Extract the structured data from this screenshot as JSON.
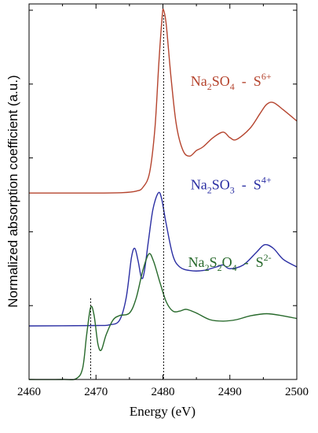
{
  "chart_data": {
    "type": "line",
    "title": "",
    "xlabel": "Energy  (eV)",
    "ylabel": "Normalized absorption coefficient (a.u.)",
    "xlim": [
      2460,
      2500
    ],
    "ylim": [
      0,
      10
    ],
    "x_ticks": [
      "2460",
      "2470",
      "2480",
      "2490",
      "2500"
    ],
    "grid": false,
    "legend": "none",
    "reference_lines_x": [
      2469.2,
      2480.1
    ],
    "series": [
      {
        "name": "Na2SO4 - S6+",
        "color": "#b5442e",
        "formula": [
          "Na",
          "2",
          "SO",
          "4",
          "  -  S",
          "6+"
        ],
        "annotation_anchor": {
          "x": 2496.2,
          "y": 7.95
        },
        "points": [
          [
            2460,
            5.05
          ],
          [
            2470,
            5.05
          ],
          [
            2474,
            5.06
          ],
          [
            2476,
            5.1
          ],
          [
            2477,
            5.2
          ],
          [
            2478,
            5.6
          ],
          [
            2478.8,
            6.8
          ],
          [
            2479.4,
            8.6
          ],
          [
            2479.9,
            9.85
          ],
          [
            2480.1,
            10.0
          ],
          [
            2480.5,
            9.6
          ],
          [
            2481.2,
            8.2
          ],
          [
            2482,
            6.9
          ],
          [
            2483,
            6.2
          ],
          [
            2484,
            6.05
          ],
          [
            2485,
            6.2
          ],
          [
            2486,
            6.3
          ],
          [
            2487.5,
            6.55
          ],
          [
            2489,
            6.7
          ],
          [
            2490,
            6.55
          ],
          [
            2491,
            6.5
          ],
          [
            2493,
            6.8
          ],
          [
            2494.5,
            7.2
          ],
          [
            2495.5,
            7.45
          ],
          [
            2496.5,
            7.5
          ],
          [
            2498,
            7.3
          ],
          [
            2500,
            7.0
          ]
        ]
      },
      {
        "name": "Na2SO3 - S4+",
        "color": "#2b2fa3",
        "formula": [
          "Na",
          "2",
          "SO",
          "3",
          "  -  S",
          "4+"
        ],
        "annotation_anchor": {
          "x": 2496.2,
          "y": 5.15
        },
        "points": [
          [
            2460,
            1.45
          ],
          [
            2470,
            1.46
          ],
          [
            2472,
            1.48
          ],
          [
            2473.5,
            1.6
          ],
          [
            2474.5,
            2.2
          ],
          [
            2475.3,
            3.3
          ],
          [
            2475.8,
            3.55
          ],
          [
            2476.3,
            3.2
          ],
          [
            2476.8,
            2.75
          ],
          [
            2477.2,
            2.9
          ],
          [
            2477.8,
            3.7
          ],
          [
            2478.5,
            4.6
          ],
          [
            2479.3,
            5.05
          ],
          [
            2479.8,
            4.9
          ],
          [
            2480.5,
            4.2
          ],
          [
            2481.5,
            3.35
          ],
          [
            2482.5,
            3.05
          ],
          [
            2484,
            2.95
          ],
          [
            2486,
            2.95
          ],
          [
            2488,
            3.05
          ],
          [
            2489,
            3.1
          ],
          [
            2490,
            3.0
          ],
          [
            2492,
            3.1
          ],
          [
            2494,
            3.45
          ],
          [
            2495.2,
            3.65
          ],
          [
            2496.5,
            3.55
          ],
          [
            2498,
            3.25
          ],
          [
            2500,
            3.05
          ]
        ]
      },
      {
        "name": "Na2S2O4 - S2-",
        "color": "#27692b",
        "formula": [
          "Na",
          "2",
          "S",
          "2",
          "O",
          "4",
          "  -  S",
          "2-"
        ],
        "annotation_anchor": {
          "x": 2496.2,
          "y": 3.05
        },
        "points": [
          [
            2460,
            0.0
          ],
          [
            2465,
            0.0
          ],
          [
            2467,
            0.02
          ],
          [
            2468,
            0.3
          ],
          [
            2468.6,
            1.2
          ],
          [
            2469.2,
            1.95
          ],
          [
            2469.7,
            1.75
          ],
          [
            2470.3,
            0.95
          ],
          [
            2470.8,
            0.8
          ],
          [
            2471.5,
            1.2
          ],
          [
            2472.5,
            1.6
          ],
          [
            2473.5,
            1.73
          ],
          [
            2475,
            1.8
          ],
          [
            2476,
            2.2
          ],
          [
            2477,
            2.95
          ],
          [
            2477.9,
            3.4
          ],
          [
            2478.6,
            3.2
          ],
          [
            2479.6,
            2.6
          ],
          [
            2480.5,
            2.1
          ],
          [
            2481.5,
            1.85
          ],
          [
            2482.5,
            1.85
          ],
          [
            2483.5,
            1.9
          ],
          [
            2485,
            1.8
          ],
          [
            2487,
            1.62
          ],
          [
            2489,
            1.58
          ],
          [
            2491,
            1.62
          ],
          [
            2493,
            1.72
          ],
          [
            2495.5,
            1.78
          ],
          [
            2498,
            1.72
          ],
          [
            2500,
            1.65
          ]
        ]
      }
    ]
  }
}
